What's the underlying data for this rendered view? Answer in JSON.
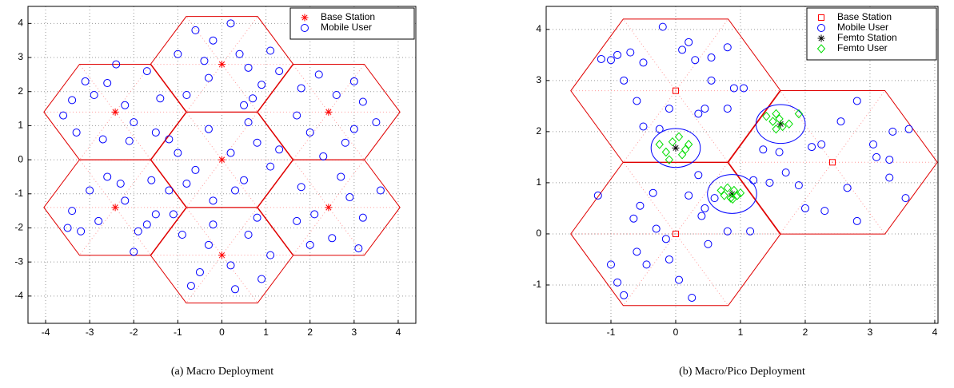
{
  "chart_data": [
    {
      "type": "scatter",
      "caption": "(a) Macro Deployment",
      "xlim": [
        -4.4,
        4.4
      ],
      "ylim": [
        -4.8,
        4.5
      ],
      "xticks": [
        -4,
        -3,
        -2,
        -1,
        0,
        1,
        2,
        3,
        4
      ],
      "yticks": [
        -4,
        -3,
        -2,
        -1,
        0,
        1,
        2,
        3,
        4
      ],
      "grid": true,
      "legend": "upper right",
      "series": [
        {
          "name": "Base Station",
          "color": "#ff0000",
          "marker": "star",
          "x": [
            0,
            0,
            2.42,
            2.42,
            0,
            -2.42,
            -2.42
          ],
          "y": [
            2.8,
            0,
            1.4,
            -1.4,
            -2.8,
            -1.4,
            1.4
          ]
        },
        {
          "name": "Mobile User",
          "color": "#0000ff",
          "marker": "circle",
          "x": [
            -3.4,
            -3.1,
            -2.9,
            -2.6,
            -2.2,
            -2,
            -1.7,
            -1.4,
            -3.3,
            -2.7,
            -2.1,
            -1.5,
            -3.6,
            -2.4,
            -1.2,
            -3.4,
            -3.2,
            -3,
            -2.8,
            -2.6,
            -2.2,
            -1.9,
            -1.6,
            -1.5,
            -1.1,
            -2,
            -3.5,
            -2.3,
            -1.7,
            -0.6,
            -0.4,
            -0.3,
            0.2,
            0.4,
            0.6,
            0.9,
            1.1,
            0.7,
            -0.8,
            -0.2,
            0.5,
            1.3,
            -1,
            -1,
            -0.6,
            -0.3,
            0.2,
            0.5,
            0.8,
            1.1,
            -0.2,
            0.3,
            -0.8,
            0.6,
            -1.2,
            1.3,
            1.8,
            2.2,
            2.6,
            3,
            3.2,
            2,
            2.8,
            3.5,
            1.7,
            3,
            2.3,
            1.8,
            2.1,
            2.5,
            2.9,
            3.2,
            3.6,
            2,
            1.7,
            3.1,
            2.7,
            -0.9,
            -0.5,
            -0.3,
            0.2,
            0.6,
            0.9,
            0.3,
            -0.7,
            1.1,
            -0.2,
            0.8
          ],
          "y": [
            1.75,
            2.3,
            1.9,
            2.25,
            1.6,
            1.1,
            2.6,
            1.8,
            0.8,
            0.6,
            0.55,
            0.8,
            1.3,
            2.8,
            0.6,
            -1.5,
            -2.1,
            -0.9,
            -1.8,
            -0.5,
            -1.2,
            -2.1,
            -0.6,
            -1.6,
            -1.6,
            -2.7,
            -2,
            -0.7,
            -1.9,
            3.8,
            2.9,
            2.4,
            4,
            3.1,
            2.7,
            2.2,
            3.2,
            1.8,
            1.9,
            3.5,
            1.6,
            2.6,
            3.1,
            0.2,
            -0.3,
            0.9,
            0.2,
            -0.6,
            0.5,
            -0.2,
            -1.2,
            -0.9,
            -0.7,
            1.1,
            -0.9,
            0.3,
            2.1,
            2.5,
            1.9,
            2.3,
            1.7,
            0.8,
            0.5,
            1.1,
            1.3,
            0.9,
            0.1,
            -0.8,
            -1.6,
            -2.3,
            -1.1,
            -1.7,
            -0.9,
            -2.5,
            -1.8,
            -2.6,
            -0.5,
            -2.2,
            -3.3,
            -2.5,
            -3.1,
            -2.2,
            -3.5,
            -3.8,
            -3.7,
            -2.8,
            -1.9,
            -1.7
          ]
        }
      ]
    },
    {
      "type": "scatter",
      "caption": "(b) Macro/Pico Deployment",
      "xlim": [
        -2,
        4.05
      ],
      "ylim": [
        -1.75,
        4.45
      ],
      "xticks": [
        -1,
        0,
        1,
        2,
        3,
        4
      ],
      "yticks": [
        -1,
        0,
        1,
        2,
        3,
        4
      ],
      "grid": true,
      "legend": "upper right",
      "series": [
        {
          "name": "Base Station",
          "color": "#ff0000",
          "marker": "square",
          "x": [
            0,
            2.42,
            0
          ],
          "y": [
            2.8,
            1.4,
            0
          ]
        },
        {
          "name": "Mobile User",
          "color": "#0000ff",
          "marker": "circle",
          "x": [
            -1,
            -0.9,
            -0.7,
            -0.5,
            0.2,
            0.3,
            0.55,
            0.8,
            -0.2,
            -0.8,
            -0.6,
            -0.1,
            0.45,
            0.9,
            1.05,
            -0.5,
            0.35,
            0.8,
            -0.25,
            0.55,
            -1.15,
            0.1,
            1.35,
            1.6,
            1.7,
            1.9,
            2.1,
            2.25,
            2.55,
            2.8,
            3.1,
            3.35,
            3.6,
            3.3,
            3.55,
            2.65,
            2.3,
            2,
            2.8,
            3.05,
            1.45,
            3.3,
            -1.2,
            -1,
            -0.9,
            -0.8,
            -0.6,
            -0.55,
            -0.35,
            -0.3,
            -0.1,
            0.05,
            0.2,
            0.35,
            0.4,
            0.5,
            0.6,
            0.8,
            1.15,
            -0.15,
            0.25,
            -0.45,
            0.45,
            1.2,
            -0.65
          ],
          "y": [
            3.4,
            3.5,
            3.55,
            3.35,
            3.75,
            3.4,
            3.45,
            3.65,
            4.05,
            3,
            2.6,
            2.45,
            2.45,
            2.85,
            2.85,
            2.1,
            2.35,
            2.45,
            2.05,
            3,
            3.42,
            3.6,
            1.65,
            1.6,
            1.2,
            0.95,
            1.7,
            1.75,
            2.2,
            2.6,
            1.5,
            2,
            2.05,
            1.1,
            0.7,
            0.9,
            0.45,
            0.5,
            0.25,
            1.75,
            1,
            1.45,
            0.75,
            -0.6,
            -0.95,
            -1.2,
            -0.35,
            0.55,
            0.8,
            0.1,
            -0.5,
            -0.9,
            0.75,
            1.15,
            0.35,
            -0.2,
            0.7,
            0.05,
            0.05,
            -0.1,
            -1.25,
            -0.6,
            0.5,
            1.05,
            0.3
          ]
        },
        {
          "name": "Femto Station",
          "color": "#000000",
          "marker": "star",
          "x": [
            0,
            1.62,
            0.87
          ],
          "y": [
            1.68,
            2.15,
            0.78
          ]
        },
        {
          "name": "Femto User",
          "color": "#00dd00",
          "marker": "diamond",
          "x": [
            -0.25,
            -0.15,
            -0.05,
            0.1,
            0.2,
            0.05,
            -0.1,
            0.15,
            1.4,
            1.5,
            1.55,
            1.65,
            1.6,
            1.75,
            1.9,
            1.55,
            0.7,
            0.75,
            0.85,
            0.9,
            1,
            0.8,
            0.95,
            0.88
          ],
          "y": [
            1.75,
            1.6,
            1.8,
            1.55,
            1.75,
            1.9,
            1.45,
            1.65,
            2.3,
            2.2,
            2.35,
            2.1,
            2.25,
            2.15,
            2.35,
            2.05,
            0.85,
            0.75,
            0.7,
            0.85,
            0.8,
            0.9,
            0.75,
            0.68
          ]
        }
      ]
    }
  ]
}
